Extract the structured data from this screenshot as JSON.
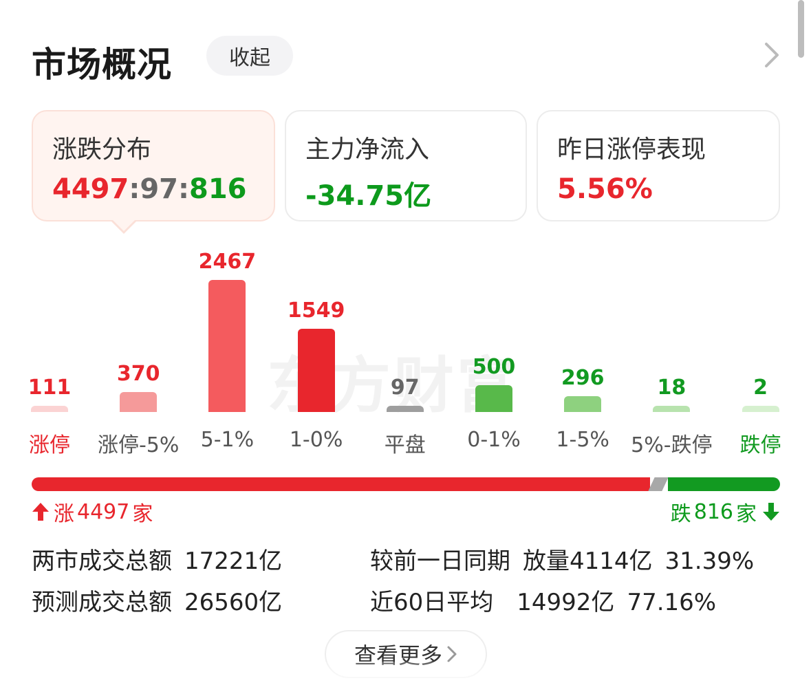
{
  "header": {
    "title": "市场概况",
    "collapse_label": "收起"
  },
  "cards": [
    {
      "label": "涨跌分布",
      "up": "4497",
      "sep1": ":",
      "flat": "97",
      "sep2": ":",
      "down": "816"
    },
    {
      "label": "主力净流入",
      "value": "-34.75亿"
    },
    {
      "label": "昨日涨停表现",
      "value": "5.56%"
    }
  ],
  "watermark": "东方财富",
  "chart_data": {
    "type": "bar",
    "categories": [
      "涨停",
      "涨停-5%",
      "5-1%",
      "1-0%",
      "平盘",
      "0-1%",
      "1-5%",
      "5%-跌停",
      "跌停"
    ],
    "values": [
      111,
      370,
      2467,
      1549,
      97,
      500,
      296,
      18,
      2
    ],
    "value_labels": [
      "111",
      "370",
      "2467",
      "1549",
      "97",
      "500",
      "296",
      "18",
      "2"
    ],
    "bar_colors": [
      "#fbd3d3",
      "#f59a9a",
      "#f45b5e",
      "#e8262d",
      "#9e9e9e",
      "#58b94a",
      "#8ed17f",
      "#b8e3ae",
      "#d6f0cf"
    ],
    "value_colors": [
      "#e8262d",
      "#e8262d",
      "#e8262d",
      "#e8262d",
      "#666666",
      "#129a21",
      "#129a21",
      "#129a21",
      "#129a21"
    ],
    "label_colors": [
      "#e8262d",
      "#555555",
      "#555555",
      "#555555",
      "#555555",
      "#555555",
      "#555555",
      "#555555",
      "#129a21"
    ]
  },
  "ratio": {
    "up": 4497,
    "flat": 97,
    "down": 816,
    "up_label": "涨",
    "up_count": "4497",
    "up_unit": "家",
    "down_label": "跌",
    "down_count": "816",
    "down_unit": "家"
  },
  "stats": {
    "total_label": "两市成交总额",
    "total_value": "17221亿",
    "predict_label": "预测成交总额",
    "predict_value": "26560亿",
    "compare_label": "较前一日同期",
    "compare_value": "放量4114亿",
    "compare_pct": "31.39%",
    "avg_label": "近60日平均",
    "avg_value": "14992亿",
    "avg_pct": "77.16%"
  },
  "more_label": "查看更多",
  "colors": {
    "up": "#e8262d",
    "down": "#129a21",
    "flat": "#9e9e9e"
  }
}
